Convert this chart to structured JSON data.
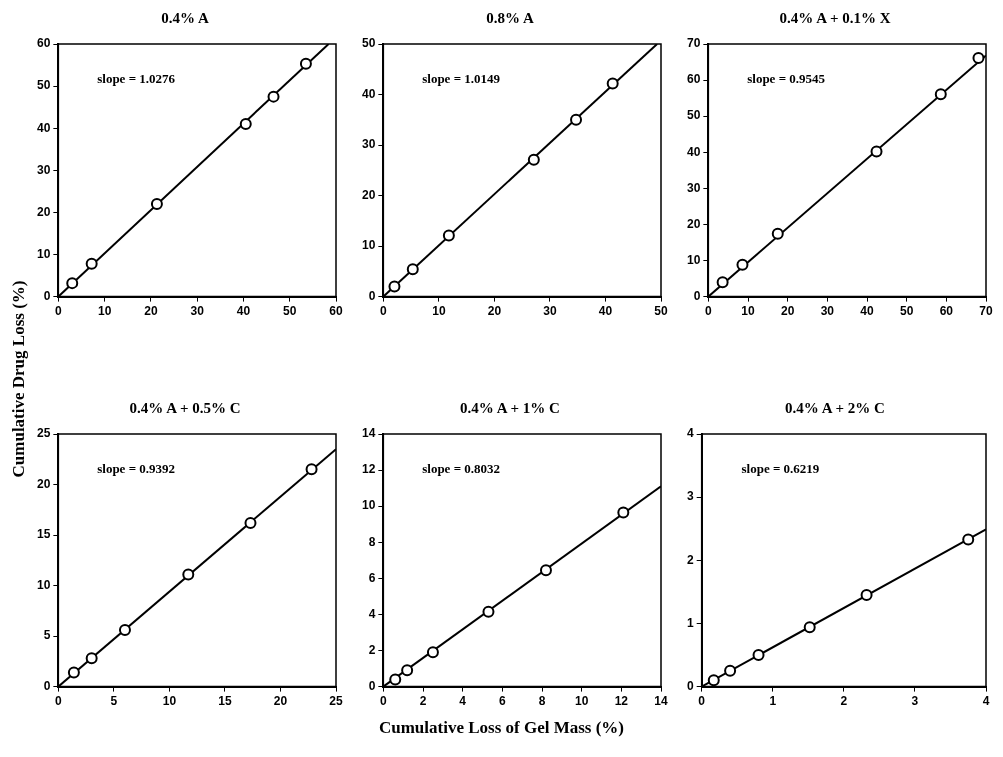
{
  "chart_data": [
    {
      "type": "scatter",
      "title": "0.4% A",
      "ylabel": "Cumulative Drug Loss (%)",
      "xlim": [
        0,
        60
      ],
      "xticks": [
        0,
        10,
        20,
        30,
        40,
        50,
        60
      ],
      "ylim": [
        0,
        60
      ],
      "yticks": [
        0,
        10,
        20,
        30,
        40,
        50,
        60
      ],
      "grid": false,
      "legend": false,
      "annotations": [
        "slope = 1.0276"
      ],
      "series": [
        {
          "marker": "circle",
          "color": "#000000",
          "x": [
            3,
            7.2,
            21.3,
            40.5,
            46.5,
            53.5
          ],
          "values": [
            3.2,
            7.8,
            22,
            41,
            47.5,
            55.3
          ]
        },
        {
          "type": "line",
          "marker": "none",
          "color": "#000000",
          "x": [
            0,
            58.4
          ],
          "values": [
            0,
            60
          ]
        }
      ]
    },
    {
      "type": "scatter",
      "title": "0.8% A",
      "xlim": [
        0,
        50
      ],
      "xticks": [
        0,
        10,
        20,
        30,
        40,
        50
      ],
      "ylim": [
        0,
        50
      ],
      "yticks": [
        0,
        10,
        20,
        30,
        40,
        50
      ],
      "grid": false,
      "legend": false,
      "annotations": [
        "slope = 1.0149"
      ],
      "series": [
        {
          "marker": "circle",
          "color": "#000000",
          "x": [
            2,
            5.3,
            11.8,
            27.1,
            34.7,
            41.3
          ],
          "values": [
            2,
            5.4,
            12.1,
            27.1,
            35,
            42.2
          ]
        },
        {
          "type": "line",
          "marker": "none",
          "color": "#000000",
          "x": [
            0,
            49.3
          ],
          "values": [
            0,
            50
          ]
        }
      ]
    },
    {
      "type": "scatter",
      "title": "0.4% A + 0.1% X",
      "xlim": [
        0,
        70
      ],
      "xticks": [
        0,
        10,
        20,
        30,
        40,
        50,
        60,
        70
      ],
      "ylim": [
        0,
        70
      ],
      "yticks": [
        0,
        10,
        20,
        30,
        40,
        50,
        60,
        70
      ],
      "grid": false,
      "legend": false,
      "annotations": [
        "slope = 0.9545"
      ],
      "series": [
        {
          "marker": "circle",
          "color": "#000000",
          "x": [
            3.6,
            8.6,
            17.5,
            42.4,
            58.6,
            68.1
          ],
          "values": [
            4,
            8.8,
            17.4,
            40.2,
            56.1,
            66.1
          ]
        },
        {
          "type": "line",
          "marker": "none",
          "color": "#000000",
          "x": [
            0,
            70
          ],
          "values": [
            0,
            66.8
          ]
        }
      ]
    },
    {
      "type": "scatter",
      "title": "0.4% A + 0.5% C",
      "xlim": [
        0,
        25
      ],
      "xticks": [
        0,
        5,
        10,
        15,
        20,
        25
      ],
      "ylim": [
        0,
        25
      ],
      "yticks": [
        0,
        5,
        10,
        15,
        20,
        25
      ],
      "grid": false,
      "legend": false,
      "annotations": [
        "slope = 0.9392"
      ],
      "series": [
        {
          "marker": "circle",
          "color": "#000000",
          "x": [
            1.4,
            3,
            6,
            11.7,
            17.3,
            22.8
          ],
          "values": [
            1.4,
            2.8,
            5.6,
            11.1,
            16.2,
            21.5
          ]
        },
        {
          "type": "line",
          "marker": "none",
          "color": "#000000",
          "x": [
            0,
            25
          ],
          "values": [
            0,
            23.5
          ]
        }
      ]
    },
    {
      "type": "scatter",
      "title": "0.4% A + 1% C",
      "xlabel": "Cumulative Loss of Gel Mass (%)",
      "xlim": [
        0,
        14
      ],
      "xticks": [
        0,
        2,
        4,
        6,
        8,
        10,
        12,
        14
      ],
      "ylim": [
        0,
        14
      ],
      "yticks": [
        0,
        2,
        4,
        6,
        8,
        10,
        12,
        14
      ],
      "grid": false,
      "legend": false,
      "annotations": [
        "slope = 0.8032"
      ],
      "series": [
        {
          "marker": "circle",
          "color": "#000000",
          "x": [
            0.6,
            1.2,
            2.5,
            5.3,
            8.2,
            12.1
          ],
          "values": [
            0.4,
            0.9,
            1.9,
            4.15,
            6.45,
            9.65
          ]
        },
        {
          "type": "line",
          "marker": "none",
          "color": "#000000",
          "x": [
            0,
            14
          ],
          "values": [
            0,
            11.1
          ]
        }
      ]
    },
    {
      "type": "scatter",
      "title": "0.4% A + 2% C",
      "xlim": [
        0,
        4
      ],
      "xticks": [
        0,
        1,
        2,
        3,
        4
      ],
      "ylim": [
        0,
        4
      ],
      "yticks": [
        0,
        1,
        2,
        3,
        4
      ],
      "grid": false,
      "legend": false,
      "annotations": [
        "slope = 0.6219"
      ],
      "series": [
        {
          "marker": "circle",
          "color": "#000000",
          "x": [
            0.17,
            0.4,
            0.8,
            1.52,
            2.32,
            3.75
          ],
          "values": [
            0.1,
            0.25,
            0.5,
            0.94,
            1.45,
            2.33
          ]
        },
        {
          "type": "line",
          "marker": "none",
          "color": "#000000",
          "x": [
            0,
            4
          ],
          "values": [
            0,
            2.49
          ]
        }
      ]
    }
  ]
}
